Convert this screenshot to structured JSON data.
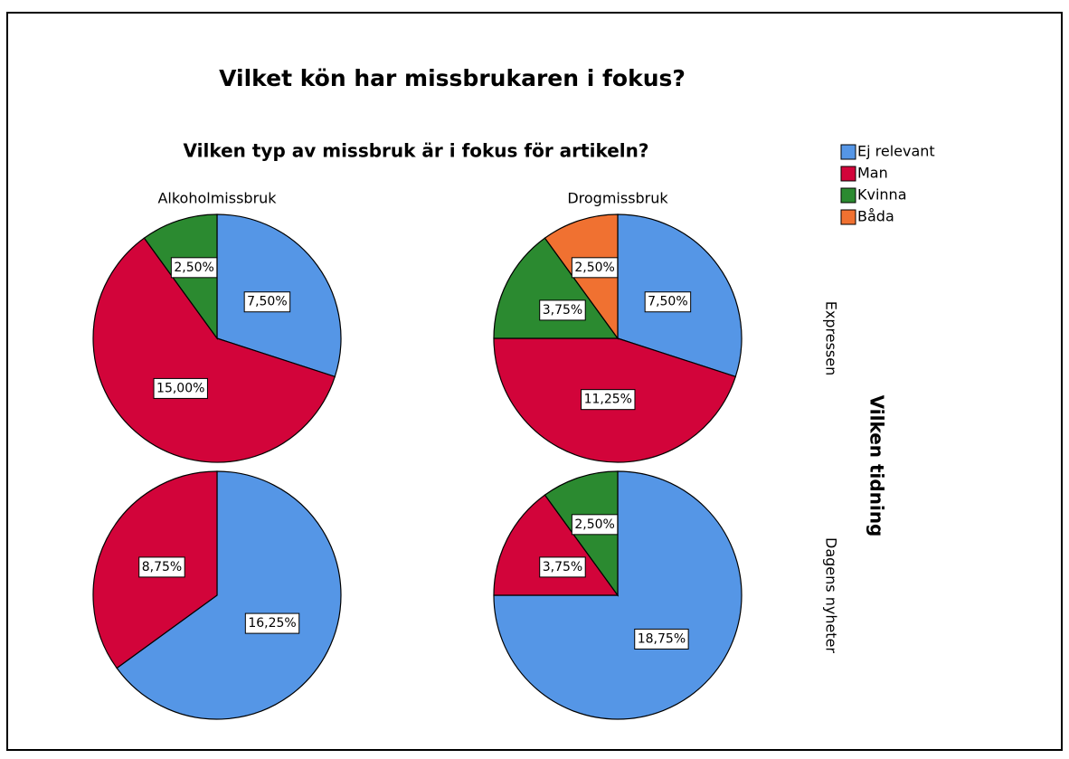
{
  "chart_data": {
    "type": "pie",
    "title": "Vilket kön har missbrukaren i fokus?",
    "subtitle": "Vilken typ av missbruk är i fokus för artikeln?",
    "row_title": "Vilken tidning",
    "column_labels": [
      "Alkoholmissbruk",
      "Drogmissbruk"
    ],
    "row_labels": [
      "Expressen",
      "Dagens nyheter"
    ],
    "categories": [
      "Ej relevant",
      "Man",
      "Kvinna",
      "Båda"
    ],
    "colors": [
      "#5596e6",
      "#d2043a",
      "#2b8a30",
      "#f07131"
    ],
    "panels": [
      {
        "column": 0,
        "row": 0,
        "values": [
          7.5,
          15,
          2.5,
          null
        ],
        "value_labels": [
          "7,50%",
          "15,00%",
          "2,50%",
          null
        ]
      },
      {
        "column": 1,
        "row": 0,
        "values": [
          7.5,
          11.25,
          3.75,
          2.5
        ],
        "value_labels": [
          "7,50%",
          "11,25%",
          "3,75%",
          "2,50%"
        ]
      },
      {
        "column": 0,
        "row": 1,
        "values": [
          16.25,
          8.75,
          null,
          null
        ],
        "value_labels": [
          "16,25%",
          "8,75%",
          null,
          null
        ]
      },
      {
        "column": 1,
        "row": 1,
        "values": [
          18.75,
          3.75,
          2.5,
          null
        ],
        "value_labels": [
          "18,75%",
          "3,75%",
          "2,50%",
          null
        ]
      }
    ]
  }
}
